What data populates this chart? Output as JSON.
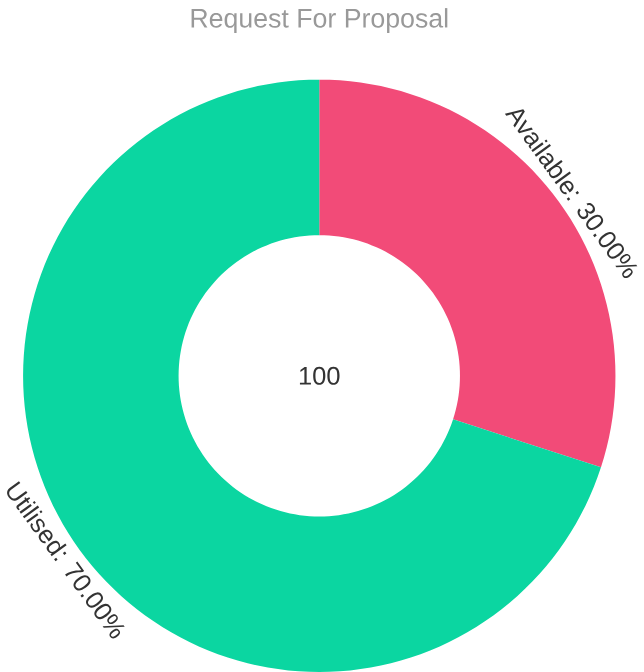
{
  "chart_data": {
    "type": "donut",
    "title": "Request For Proposal",
    "categories": [
      null,
      null
    ],
    "values": [
      30,
      70
    ],
    "value_labels": [
      "Available: 30.00%",
      "Utilised: 70.00%"
    ],
    "colors": [
      "#f24b78",
      "#0bd6a1"
    ],
    "annotations": [
      "100"
    ]
  }
}
